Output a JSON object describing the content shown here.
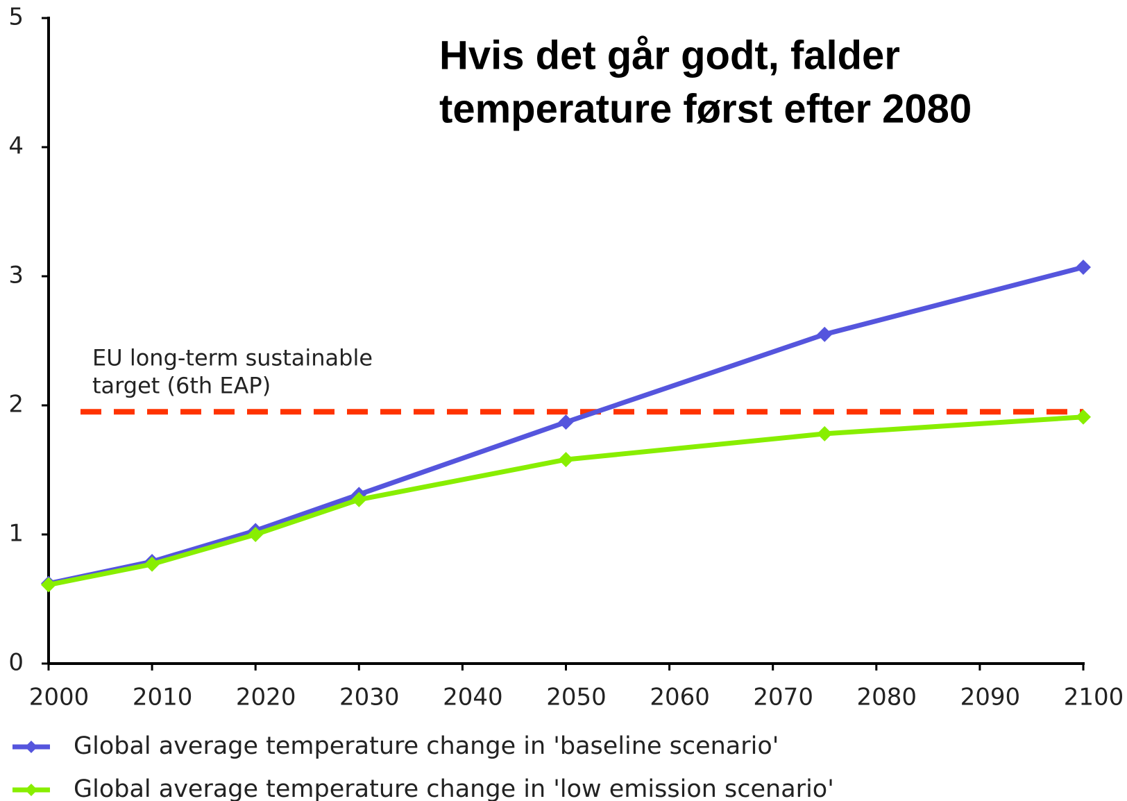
{
  "chart_data": {
    "type": "line",
    "title": [
      "Hvis det går godt, falder",
      "temperature først efter 2080"
    ],
    "x": [
      2000,
      2010,
      2020,
      2030,
      2050,
      2075,
      2100
    ],
    "series": [
      {
        "name": "Global average temperature change in 'baseline scenario'",
        "color": "#5555dd",
        "values": [
          0.62,
          0.79,
          1.03,
          1.31,
          1.87,
          2.55,
          3.07
        ]
      },
      {
        "name": "Global average temperature change in 'low emission scenario'",
        "color": "#88ee00",
        "values": [
          0.61,
          0.77,
          1.0,
          1.27,
          1.58,
          1.78,
          1.91
        ]
      }
    ],
    "reference_lines": [
      {
        "value": 1.95,
        "color": "#ff3300",
        "label": [
          "EU long-term sustainable",
          "target (6th EAP)"
        ]
      }
    ],
    "xlim": [
      2000,
      2100
    ],
    "xticks": [
      2000,
      2010,
      2020,
      2030,
      2040,
      2050,
      2060,
      2070,
      2080,
      2090,
      2100
    ],
    "ylim": [
      0,
      5
    ],
    "yticks": [
      0,
      1,
      2,
      3,
      4,
      5
    ],
    "grid": false,
    "legend": "bottom"
  }
}
